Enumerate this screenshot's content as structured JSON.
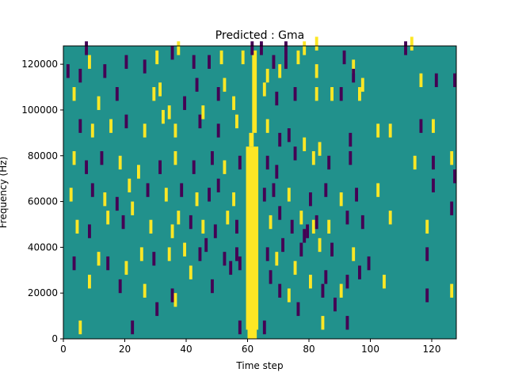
{
  "chart_data": {
    "type": "heatmap",
    "title": "Predicted : Gma",
    "xlabel": "Time step",
    "ylabel": "Frequency (Hz)",
    "xlim": [
      0,
      128
    ],
    "ylim": [
      0,
      128000
    ],
    "xticks": [
      0,
      20,
      40,
      60,
      80,
      100,
      120
    ],
    "yticks": [
      0,
      20000,
      40000,
      60000,
      80000,
      100000,
      120000
    ],
    "xtick_labels": [
      "0",
      "20",
      "40",
      "60",
      "80",
      "100",
      "120"
    ],
    "ytick_labels": [
      "0",
      "20000",
      "40000",
      "60000",
      "80000",
      "100000",
      "120000"
    ],
    "grid": false,
    "colormap": {
      "background": "#21918c",
      "high": "#fde725",
      "low": "#440154"
    },
    "bands": [
      {
        "level": "high",
        "x": [
          59.5,
          63.5
        ],
        "y": [
          4000,
          84000
        ]
      },
      {
        "level": "high",
        "x": [
          60,
          63
        ],
        "y": [
          0,
          20000
        ]
      },
      {
        "level": "high",
        "x": [
          60.5,
          62
        ],
        "y": [
          84000,
          90000
        ]
      },
      {
        "level": "high",
        "x": [
          61.5,
          63
        ],
        "y": [
          90000,
          126000
        ]
      }
    ],
    "cells": [
      {
        "t": 5,
        "f": 2000,
        "v": "high"
      },
      {
        "t": 22,
        "f": 2000,
        "v": "low"
      },
      {
        "t": 57,
        "f": 2000,
        "v": "low"
      },
      {
        "t": 65,
        "f": 2000,
        "v": "low"
      },
      {
        "t": 84,
        "f": 4000,
        "v": "high"
      },
      {
        "t": 92,
        "f": 4000,
        "v": "low"
      },
      {
        "t": 30,
        "f": 10000,
        "v": "low"
      },
      {
        "t": 76,
        "f": 10000,
        "v": "low"
      },
      {
        "t": 88,
        "f": 12000,
        "v": "low"
      },
      {
        "t": 3,
        "f": 30000,
        "v": "low"
      },
      {
        "t": 8,
        "f": 22000,
        "v": "high"
      },
      {
        "t": 18,
        "f": 20000,
        "v": "low"
      },
      {
        "t": 26,
        "f": 18000,
        "v": "high"
      },
      {
        "t": 35,
        "f": 16000,
        "v": "low"
      },
      {
        "t": 36,
        "f": 14000,
        "v": "high"
      },
      {
        "t": 41,
        "f": 26000,
        "v": "high"
      },
      {
        "t": 48,
        "f": 20000,
        "v": "low"
      },
      {
        "t": 54,
        "f": 28000,
        "v": "low"
      },
      {
        "t": 67,
        "f": 24000,
        "v": "low"
      },
      {
        "t": 70,
        "f": 18000,
        "v": "low"
      },
      {
        "t": 73,
        "f": 16000,
        "v": "high"
      },
      {
        "t": 75,
        "f": 28000,
        "v": "high"
      },
      {
        "t": 80,
        "f": 22000,
        "v": "high"
      },
      {
        "t": 84,
        "f": 18000,
        "v": "low"
      },
      {
        "t": 85,
        "f": 24000,
        "v": "low"
      },
      {
        "t": 90,
        "f": 18000,
        "v": "high"
      },
      {
        "t": 92,
        "f": 22000,
        "v": "low"
      },
      {
        "t": 96,
        "f": 26000,
        "v": "low"
      },
      {
        "t": 104,
        "f": 22000,
        "v": "high"
      },
      {
        "t": 118,
        "f": 16000,
        "v": "low"
      },
      {
        "t": 126,
        "f": 18000,
        "v": "high"
      },
      {
        "t": 11,
        "f": 32000,
        "v": "high"
      },
      {
        "t": 14,
        "f": 30000,
        "v": "low"
      },
      {
        "t": 20,
        "f": 28000,
        "v": "high"
      },
      {
        "t": 25,
        "f": 34000,
        "v": "high"
      },
      {
        "t": 29,
        "f": 32000,
        "v": "low"
      },
      {
        "t": 34,
        "f": 34000,
        "v": "high"
      },
      {
        "t": 39,
        "f": 36000,
        "v": "high"
      },
      {
        "t": 44,
        "f": 34000,
        "v": "low"
      },
      {
        "t": 46,
        "f": 38000,
        "v": "low"
      },
      {
        "t": 52,
        "f": 32000,
        "v": "low"
      },
      {
        "t": 56,
        "f": 34000,
        "v": "low"
      },
      {
        "t": 57,
        "f": 30000,
        "v": "low"
      },
      {
        "t": 66,
        "f": 34000,
        "v": "low"
      },
      {
        "t": 69,
        "f": 32000,
        "v": "high"
      },
      {
        "t": 71,
        "f": 38000,
        "v": "low"
      },
      {
        "t": 77,
        "f": 36000,
        "v": "low"
      },
      {
        "t": 78,
        "f": 42000,
        "v": "low"
      },
      {
        "t": 79,
        "f": 44000,
        "v": "low"
      },
      {
        "t": 81,
        "f": 46000,
        "v": "high"
      },
      {
        "t": 83,
        "f": 38000,
        "v": "high"
      },
      {
        "t": 87,
        "f": 36000,
        "v": "low"
      },
      {
        "t": 94,
        "f": 34000,
        "v": "high"
      },
      {
        "t": 99,
        "f": 30000,
        "v": "low"
      },
      {
        "t": 118,
        "f": 34000,
        "v": "low"
      },
      {
        "t": 4,
        "f": 46000,
        "v": "high"
      },
      {
        "t": 8,
        "f": 44000,
        "v": "low"
      },
      {
        "t": 14,
        "f": 50000,
        "v": "high"
      },
      {
        "t": 19,
        "f": 48000,
        "v": "low"
      },
      {
        "t": 22,
        "f": 54000,
        "v": "high"
      },
      {
        "t": 28,
        "f": 46000,
        "v": "high"
      },
      {
        "t": 35,
        "f": 44000,
        "v": "high"
      },
      {
        "t": 37,
        "f": 50000,
        "v": "high"
      },
      {
        "t": 41,
        "f": 48000,
        "v": "low"
      },
      {
        "t": 45,
        "f": 46000,
        "v": "high"
      },
      {
        "t": 49,
        "f": 44000,
        "v": "low"
      },
      {
        "t": 53,
        "f": 50000,
        "v": "high"
      },
      {
        "t": 56,
        "f": 46000,
        "v": "low"
      },
      {
        "t": 67,
        "f": 48000,
        "v": "high"
      },
      {
        "t": 70,
        "f": 52000,
        "v": "low"
      },
      {
        "t": 74,
        "f": 46000,
        "v": "low"
      },
      {
        "t": 77,
        "f": 50000,
        "v": "high"
      },
      {
        "t": 82,
        "f": 48000,
        "v": "low"
      },
      {
        "t": 86,
        "f": 46000,
        "v": "high"
      },
      {
        "t": 92,
        "f": 50000,
        "v": "low"
      },
      {
        "t": 97,
        "f": 48000,
        "v": "low"
      },
      {
        "t": 106,
        "f": 50000,
        "v": "high"
      },
      {
        "t": 118,
        "f": 46000,
        "v": "high"
      },
      {
        "t": 126,
        "f": 54000,
        "v": "low"
      },
      {
        "t": 2,
        "f": 60000,
        "v": "high"
      },
      {
        "t": 9,
        "f": 62000,
        "v": "low"
      },
      {
        "t": 13,
        "f": 58000,
        "v": "high"
      },
      {
        "t": 17,
        "f": 56000,
        "v": "low"
      },
      {
        "t": 21,
        "f": 64000,
        "v": "high"
      },
      {
        "t": 27,
        "f": 62000,
        "v": "low"
      },
      {
        "t": 33,
        "f": 60000,
        "v": "high"
      },
      {
        "t": 38,
        "f": 62000,
        "v": "low"
      },
      {
        "t": 43,
        "f": 58000,
        "v": "high"
      },
      {
        "t": 47,
        "f": 60000,
        "v": "low"
      },
      {
        "t": 50,
        "f": 64000,
        "v": "low"
      },
      {
        "t": 55,
        "f": 58000,
        "v": "high"
      },
      {
        "t": 65,
        "f": 60000,
        "v": "low"
      },
      {
        "t": 68,
        "f": 62000,
        "v": "low"
      },
      {
        "t": 73,
        "f": 60000,
        "v": "high"
      },
      {
        "t": 80,
        "f": 58000,
        "v": "low"
      },
      {
        "t": 85,
        "f": 62000,
        "v": "low"
      },
      {
        "t": 90,
        "f": 58000,
        "v": "high"
      },
      {
        "t": 95,
        "f": 60000,
        "v": "low"
      },
      {
        "t": 102,
        "f": 62000,
        "v": "high"
      },
      {
        "t": 120,
        "f": 64000,
        "v": "low"
      },
      {
        "t": 127,
        "f": 68000,
        "v": "low"
      },
      {
        "t": 3,
        "f": 76000,
        "v": "high"
      },
      {
        "t": 7,
        "f": 72000,
        "v": "low"
      },
      {
        "t": 12,
        "f": 76000,
        "v": "low"
      },
      {
        "t": 18,
        "f": 74000,
        "v": "high"
      },
      {
        "t": 24,
        "f": 70000,
        "v": "high"
      },
      {
        "t": 31,
        "f": 72000,
        "v": "low"
      },
      {
        "t": 36,
        "f": 76000,
        "v": "high"
      },
      {
        "t": 42,
        "f": 72000,
        "v": "low"
      },
      {
        "t": 48,
        "f": 76000,
        "v": "low"
      },
      {
        "t": 52,
        "f": 72000,
        "v": "high"
      },
      {
        "t": 57,
        "f": 74000,
        "v": "low"
      },
      {
        "t": 66,
        "f": 74000,
        "v": "low"
      },
      {
        "t": 69,
        "f": 70000,
        "v": "low"
      },
      {
        "t": 75,
        "f": 78000,
        "v": "low"
      },
      {
        "t": 81,
        "f": 76000,
        "v": "high"
      },
      {
        "t": 86,
        "f": 74000,
        "v": "low"
      },
      {
        "t": 93,
        "f": 76000,
        "v": "low"
      },
      {
        "t": 114,
        "f": 74000,
        "v": "high"
      },
      {
        "t": 120,
        "f": 74000,
        "v": "low"
      },
      {
        "t": 126,
        "f": 76000,
        "v": "high"
      },
      {
        "t": 5,
        "f": 90000,
        "v": "low"
      },
      {
        "t": 9,
        "f": 88000,
        "v": "high"
      },
      {
        "t": 15,
        "f": 90000,
        "v": "high"
      },
      {
        "t": 20,
        "f": 92000,
        "v": "low"
      },
      {
        "t": 26,
        "f": 88000,
        "v": "high"
      },
      {
        "t": 32,
        "f": 94000,
        "v": "high"
      },
      {
        "t": 36,
        "f": 88000,
        "v": "high"
      },
      {
        "t": 44,
        "f": 92000,
        "v": "low"
      },
      {
        "t": 50,
        "f": 88000,
        "v": "low"
      },
      {
        "t": 56,
        "f": 92000,
        "v": "high"
      },
      {
        "t": 66,
        "f": 90000,
        "v": "high"
      },
      {
        "t": 70,
        "f": 84000,
        "v": "low"
      },
      {
        "t": 73,
        "f": 86000,
        "v": "low"
      },
      {
        "t": 78,
        "f": 82000,
        "v": "high"
      },
      {
        "t": 83,
        "f": 80000,
        "v": "high"
      },
      {
        "t": 93,
        "f": 84000,
        "v": "low"
      },
      {
        "t": 102,
        "f": 88000,
        "v": "high"
      },
      {
        "t": 106,
        "f": 88000,
        "v": "high"
      },
      {
        "t": 116,
        "f": 90000,
        "v": "low"
      },
      {
        "t": 120,
        "f": 90000,
        "v": "high"
      },
      {
        "t": 3,
        "f": 104000,
        "v": "high"
      },
      {
        "t": 11,
        "f": 100000,
        "v": "high"
      },
      {
        "t": 17,
        "f": 104000,
        "v": "low"
      },
      {
        "t": 29,
        "f": 104000,
        "v": "high"
      },
      {
        "t": 34,
        "f": 96000,
        "v": "high"
      },
      {
        "t": 39,
        "f": 100000,
        "v": "low"
      },
      {
        "t": 45,
        "f": 96000,
        "v": "high"
      },
      {
        "t": 50,
        "f": 104000,
        "v": "low"
      },
      {
        "t": 55,
        "f": 100000,
        "v": "high"
      },
      {
        "t": 65,
        "f": 106000,
        "v": "high"
      },
      {
        "t": 69,
        "f": 102000,
        "v": "low"
      },
      {
        "t": 75,
        "f": 104000,
        "v": "low"
      },
      {
        "t": 82,
        "f": 104000,
        "v": "high"
      },
      {
        "t": 87,
        "f": 104000,
        "v": "high"
      },
      {
        "t": 90,
        "f": 104000,
        "v": "low"
      },
      {
        "t": 96,
        "f": 104000,
        "v": "high"
      },
      {
        "t": 116,
        "f": 110000,
        "v": "high"
      },
      {
        "t": 121,
        "f": 110000,
        "v": "low"
      },
      {
        "t": 127,
        "f": 110000,
        "v": "low"
      },
      {
        "t": 1,
        "f": 114000,
        "v": "low"
      },
      {
        "t": 5,
        "f": 112000,
        "v": "low"
      },
      {
        "t": 8,
        "f": 118000,
        "v": "high"
      },
      {
        "t": 13,
        "f": 114000,
        "v": "low"
      },
      {
        "t": 20,
        "f": 118000,
        "v": "low"
      },
      {
        "t": 26,
        "f": 116000,
        "v": "low"
      },
      {
        "t": 35,
        "f": 122000,
        "v": "low"
      },
      {
        "t": 37,
        "f": 124000,
        "v": "high"
      },
      {
        "t": 42,
        "f": 118000,
        "v": "low"
      },
      {
        "t": 47,
        "f": 118000,
        "v": "low"
      },
      {
        "t": 51,
        "f": 120000,
        "v": "high"
      },
      {
        "t": 58,
        "f": 120000,
        "v": "high"
      },
      {
        "t": 66,
        "f": 112000,
        "v": "high"
      },
      {
        "t": 68,
        "f": 118000,
        "v": "low"
      },
      {
        "t": 70,
        "f": 114000,
        "v": "high"
      },
      {
        "t": 72,
        "f": 118000,
        "v": "low"
      },
      {
        "t": 76,
        "f": 120000,
        "v": "high"
      },
      {
        "t": 82,
        "f": 114000,
        "v": "high"
      },
      {
        "t": 91,
        "f": 120000,
        "v": "low"
      },
      {
        "t": 94,
        "f": 116000,
        "v": "high"
      },
      {
        "t": 111,
        "f": 124000,
        "v": "low"
      },
      {
        "t": 113,
        "f": 126000,
        "v": "high"
      },
      {
        "t": 7,
        "f": 124000,
        "v": "low"
      },
      {
        "t": 30,
        "f": 120000,
        "v": "high"
      },
      {
        "t": 31,
        "f": 106000,
        "v": "high"
      },
      {
        "t": 43,
        "f": 108000,
        "v": "low"
      },
      {
        "t": 52,
        "f": 108000,
        "v": "high"
      },
      {
        "t": 61,
        "f": 124000,
        "v": "low"
      },
      {
        "t": 64,
        "f": 124000,
        "v": "low"
      },
      {
        "t": 72,
        "f": 124000,
        "v": "low"
      },
      {
        "t": 78,
        "f": 124000,
        "v": "high"
      },
      {
        "t": 82,
        "f": 126000,
        "v": "high"
      },
      {
        "t": 94,
        "f": 112000,
        "v": "low"
      },
      {
        "t": 97,
        "f": 108000,
        "v": "high"
      }
    ]
  }
}
